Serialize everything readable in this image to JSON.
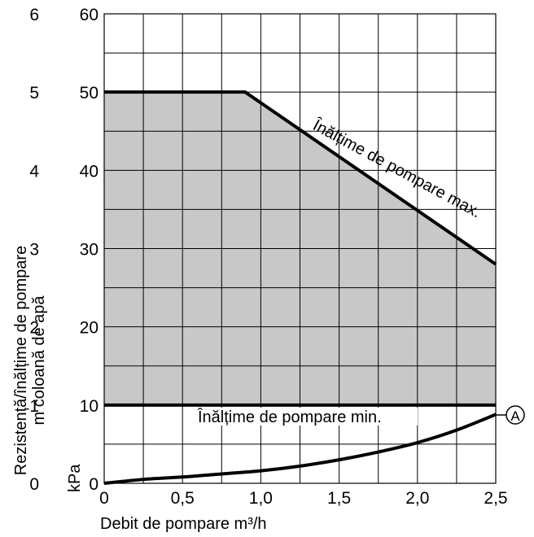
{
  "chart_data": {
    "type": "area",
    "x_axis": {
      "label": "Debit de pompare m³/h",
      "range": [
        0,
        2.5
      ],
      "ticks": [
        0,
        0.5,
        1.0,
        1.5,
        2.0,
        2.5
      ],
      "tick_labels": [
        "0",
        "0,5",
        "1,0",
        "1,5",
        "2,0",
        "2,5"
      ]
    },
    "y_axis_kpa": {
      "label": "kPa",
      "range": [
        0,
        60
      ],
      "ticks": [
        0,
        10,
        20,
        30,
        40,
        50,
        60
      ],
      "tick_labels": [
        "0",
        "10",
        "20",
        "30",
        "40",
        "50",
        "60"
      ]
    },
    "y_axis_m": {
      "label": "Rezistență/înălțime de pompare m coloană de apă",
      "label_lines": [
        "Rezistență/înălțime de pompare",
        "m coloană de apă"
      ],
      "range": [
        0,
        6
      ],
      "ticks": [
        0,
        1,
        2,
        3,
        4,
        5,
        6
      ],
      "tick_labels": [
        "0",
        "1",
        "2",
        "3",
        "4",
        "5",
        "6"
      ]
    },
    "grid": true,
    "shaded_region": {
      "description_color": "#c8c8c8",
      "upper": "max_head",
      "lower": "min_head"
    },
    "series": [
      {
        "name": "Înălțime de pompare max.",
        "x": [
          0,
          0.9,
          2.5
        ],
        "y": [
          50,
          50,
          28
        ]
      },
      {
        "name": "Înălțime de pompare min.",
        "x": [
          0,
          2.5
        ],
        "y": [
          10,
          10
        ]
      },
      {
        "name": "A",
        "x": [
          0,
          0.25,
          0.5,
          0.75,
          1.0,
          1.25,
          1.5,
          1.75,
          2.0,
          2.25,
          2.5
        ],
        "y": [
          0.0,
          0.5,
          0.8,
          1.2,
          1.6,
          2.2,
          3.0,
          4.0,
          5.2,
          6.8,
          8.8
        ]
      }
    ],
    "annotations": [
      {
        "text": "Înălțime de pompare max.",
        "series": "Înălțime de pompare max."
      },
      {
        "text": "Înălțime de pompare min.",
        "series": "Înălțime de pompare min."
      },
      {
        "text": "A",
        "series": "A",
        "style": "circled-marker"
      }
    ],
    "colors": {
      "fill": "#c8c8c8",
      "line": "#000000",
      "grid": "#000000"
    }
  }
}
